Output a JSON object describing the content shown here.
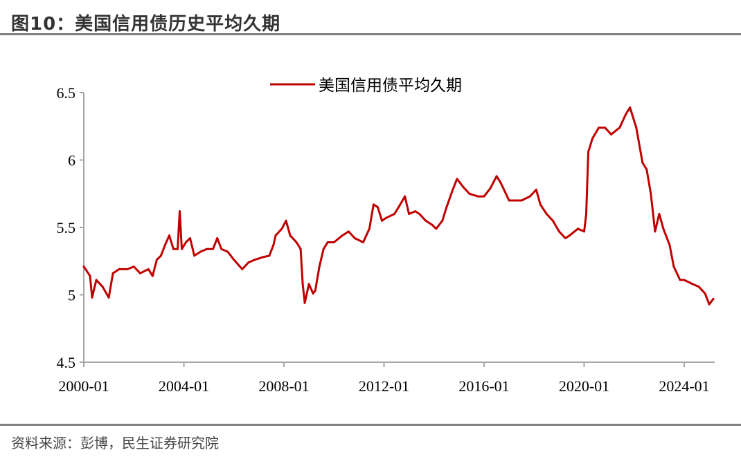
{
  "header": {
    "title": "图10：美国信用债历史平均久期"
  },
  "footer": {
    "source": "资料来源：彭博，民生证券研究院"
  },
  "colors": {
    "series": "#c00000",
    "axis": "#a6a6a6",
    "rule": "#7f7f7f"
  },
  "chart_data": {
    "type": "line",
    "title": "",
    "xlabel": "",
    "ylabel": "",
    "ylim": [
      4.5,
      6.5
    ],
    "xlim": [
      "2000-01",
      "2025-03"
    ],
    "yticks": [
      "4.5",
      "5",
      "5.5",
      "6",
      "6.5"
    ],
    "xticks": [
      "2000-01",
      "2004-01",
      "2008-01",
      "2012-01",
      "2016-01",
      "2020-01",
      "2024-01"
    ],
    "grid": false,
    "legend": "top-center",
    "series": [
      {
        "name": "美国信用债平均久期",
        "color": "#c00000",
        "points": [
          [
            "2000-01",
            5.21
          ],
          [
            "2000-04",
            5.14
          ],
          [
            "2000-05",
            4.98
          ],
          [
            "2000-07",
            5.11
          ],
          [
            "2000-10",
            5.06
          ],
          [
            "2001-01",
            4.98
          ],
          [
            "2001-03",
            5.16
          ],
          [
            "2001-06",
            5.19
          ],
          [
            "2001-10",
            5.19
          ],
          [
            "2002-01",
            5.21
          ],
          [
            "2002-04",
            5.16
          ],
          [
            "2002-08",
            5.19
          ],
          [
            "2002-10",
            5.14
          ],
          [
            "2002-12",
            5.26
          ],
          [
            "2003-02",
            5.29
          ],
          [
            "2003-04",
            5.37
          ],
          [
            "2003-06",
            5.44
          ],
          [
            "2003-08",
            5.34
          ],
          [
            "2003-10",
            5.34
          ],
          [
            "2003-11",
            5.62
          ],
          [
            "2003-12",
            5.34
          ],
          [
            "2004-02",
            5.39
          ],
          [
            "2004-04",
            5.42
          ],
          [
            "2004-06",
            5.29
          ],
          [
            "2004-09",
            5.32
          ],
          [
            "2004-12",
            5.34
          ],
          [
            "2005-03",
            5.34
          ],
          [
            "2005-05",
            5.42
          ],
          [
            "2005-07",
            5.34
          ],
          [
            "2005-10",
            5.32
          ],
          [
            "2006-01",
            5.26
          ],
          [
            "2006-05",
            5.19
          ],
          [
            "2006-08",
            5.24
          ],
          [
            "2006-11",
            5.26
          ],
          [
            "2007-03",
            5.28
          ],
          [
            "2007-06",
            5.29
          ],
          [
            "2007-08",
            5.37
          ],
          [
            "2007-09",
            5.44
          ],
          [
            "2007-12",
            5.49
          ],
          [
            "2008-02",
            5.55
          ],
          [
            "2008-04",
            5.44
          ],
          [
            "2008-07",
            5.39
          ],
          [
            "2008-09",
            5.34
          ],
          [
            "2008-10",
            5.08
          ],
          [
            "2008-11",
            4.94
          ],
          [
            "2009-01",
            5.08
          ],
          [
            "2009-03",
            5.01
          ],
          [
            "2009-04",
            5.03
          ],
          [
            "2009-06",
            5.21
          ],
          [
            "2009-08",
            5.34
          ],
          [
            "2009-10",
            5.39
          ],
          [
            "2010-01",
            5.39
          ],
          [
            "2010-05",
            5.44
          ],
          [
            "2010-08",
            5.47
          ],
          [
            "2010-11",
            5.42
          ],
          [
            "2011-03",
            5.39
          ],
          [
            "2011-06",
            5.49
          ],
          [
            "2011-08",
            5.67
          ],
          [
            "2011-10",
            5.65
          ],
          [
            "2011-12",
            5.55
          ],
          [
            "2012-02",
            5.57
          ],
          [
            "2012-06",
            5.6
          ],
          [
            "2012-08",
            5.65
          ],
          [
            "2012-11",
            5.73
          ],
          [
            "2013-01",
            5.6
          ],
          [
            "2013-04",
            5.62
          ],
          [
            "2013-06",
            5.6
          ],
          [
            "2013-09",
            5.55
          ],
          [
            "2013-12",
            5.52
          ],
          [
            "2014-02",
            5.49
          ],
          [
            "2014-05",
            5.55
          ],
          [
            "2014-07",
            5.65
          ],
          [
            "2014-10",
            5.78
          ],
          [
            "2014-12",
            5.86
          ],
          [
            "2015-03",
            5.8
          ],
          [
            "2015-06",
            5.75
          ],
          [
            "2015-10",
            5.73
          ],
          [
            "2016-01",
            5.73
          ],
          [
            "2016-04",
            5.79
          ],
          [
            "2016-07",
            5.88
          ],
          [
            "2016-09",
            5.83
          ],
          [
            "2017-01",
            5.7
          ],
          [
            "2017-04",
            5.7
          ],
          [
            "2017-07",
            5.7
          ],
          [
            "2017-11",
            5.73
          ],
          [
            "2018-02",
            5.78
          ],
          [
            "2018-04",
            5.67
          ],
          [
            "2018-07",
            5.6
          ],
          [
            "2018-10",
            5.55
          ],
          [
            "2019-01",
            5.47
          ],
          [
            "2019-04",
            5.42
          ],
          [
            "2019-06",
            5.44
          ],
          [
            "2019-10",
            5.49
          ],
          [
            "2020-01",
            5.47
          ],
          [
            "2020-02",
            5.6
          ],
          [
            "2020-03",
            6.06
          ],
          [
            "2020-05",
            6.16
          ],
          [
            "2020-08",
            6.24
          ],
          [
            "2020-11",
            6.24
          ],
          [
            "2021-02",
            6.19
          ],
          [
            "2021-06",
            6.24
          ],
          [
            "2021-09",
            6.34
          ],
          [
            "2021-11",
            6.39
          ],
          [
            "2022-02",
            6.24
          ],
          [
            "2022-05",
            5.98
          ],
          [
            "2022-07",
            5.93
          ],
          [
            "2022-09",
            5.75
          ],
          [
            "2022-11",
            5.47
          ],
          [
            "2023-01",
            5.6
          ],
          [
            "2023-03",
            5.49
          ],
          [
            "2023-06",
            5.37
          ],
          [
            "2023-08",
            5.21
          ],
          [
            "2023-11",
            5.11
          ],
          [
            "2024-01",
            5.11
          ],
          [
            "2024-05",
            5.08
          ],
          [
            "2024-08",
            5.06
          ],
          [
            "2024-11",
            5.01
          ],
          [
            "2025-01",
            4.93
          ],
          [
            "2025-03",
            4.97
          ]
        ]
      }
    ]
  }
}
